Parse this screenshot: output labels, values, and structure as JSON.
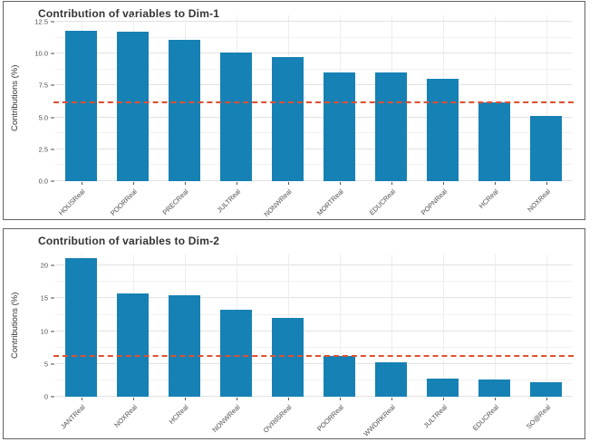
{
  "colors": {
    "bar": "#1681b4",
    "reference_line": "#e0502f",
    "panel_border": "#636363",
    "grid_major": "#e2e2e2",
    "grid_minor": "#f1f1f1",
    "title_text": "#333333",
    "tick_text": "#4d4d4d"
  },
  "chart_data": [
    {
      "type": "bar",
      "title": "Contribution of variables to Dim-1",
      "xlabel": "",
      "ylabel": "Contributions (%)",
      "categories": [
        "HOUSReal",
        "POORReal",
        "PRECReal",
        "JULTReal",
        "NONWReal",
        "MORTReal",
        "EDUCReal",
        "POPNReal",
        "HCReal",
        "NOXReal"
      ],
      "values": [
        11.8,
        11.7,
        11.1,
        10.1,
        9.7,
        8.5,
        8.5,
        8.0,
        6.2,
        5.1
      ],
      "ylim": [
        0,
        13.0
      ],
      "yticks": [
        0,
        2.5,
        5,
        7.5,
        10,
        12.5
      ],
      "ytick_labels": [
        "0.0",
        "2.5",
        "5.0",
        "7.5",
        "10.0",
        "12.5"
      ],
      "minor_yticks": [
        1.25,
        3.75,
        6.25,
        8.75,
        11.25
      ],
      "reference_line": 6.2,
      "bar_color": "#1681b4",
      "reference_line_color": "#e0502f",
      "grid": true,
      "legend": "none"
    },
    {
      "type": "bar",
      "title": "Contribution of variables to Dim-2",
      "xlabel": "",
      "ylabel": "Contributions (%)",
      "categories": [
        "JANTReal",
        "NOXReal",
        "HCReal",
        "NONWReal",
        "OVR65Real",
        "POORReal",
        "WWDRKReal",
        "JULTReal",
        "EDUCReal",
        "SO@Real"
      ],
      "values": [
        21.2,
        15.7,
        15.5,
        13.3,
        12.0,
        6.2,
        5.2,
        2.8,
        2.6,
        2.2
      ],
      "ylim": [
        0,
        21.7
      ],
      "yticks": [
        0,
        5,
        10,
        15,
        20
      ],
      "ytick_labels": [
        "0",
        "5",
        "10",
        "15",
        "20"
      ],
      "minor_yticks": [
        2.5,
        7.5,
        12.5,
        17.5
      ],
      "reference_line": 6.2,
      "bar_color": "#1681b4",
      "reference_line_color": "#e0502f",
      "grid": true,
      "legend": "none"
    }
  ]
}
